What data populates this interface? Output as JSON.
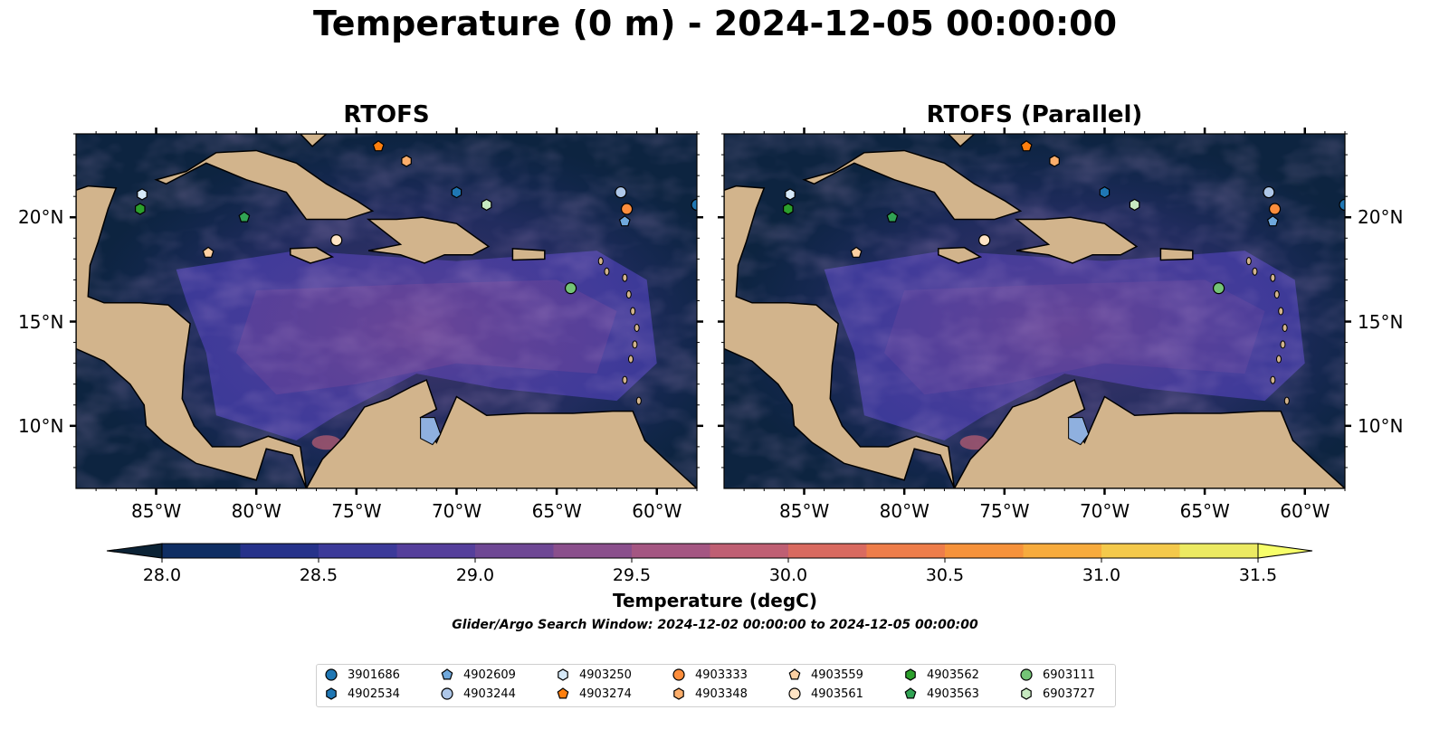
{
  "title": "Temperature (0 m) - 2024-12-05 00:00:00",
  "panels": [
    {
      "title": "RTOFS"
    },
    {
      "title": "RTOFS (Parallel)"
    }
  ],
  "lon_ticks": [
    "85°W",
    "80°W",
    "75°W",
    "70°W",
    "65°W",
    "60°W"
  ],
  "lat_ticks": [
    "20°N",
    "15°N",
    "10°N"
  ],
  "map_extent": {
    "lon": [
      -89,
      -58
    ],
    "lat": [
      7,
      24
    ]
  },
  "colorbar": {
    "title": "Temperature (degC)",
    "range": [
      28.0,
      31.5
    ],
    "extend": "both",
    "tick_labels": [
      "28.0",
      "28.5",
      "29.0",
      "29.5",
      "30.0",
      "30.5",
      "31.0",
      "31.5"
    ],
    "colors": [
      "#0b2235",
      "#0f2e63",
      "#26328a",
      "#3c3a99",
      "#553f9b",
      "#6e4794",
      "#8a4f8c",
      "#a45682",
      "#bf5f73",
      "#d96a60",
      "#ee7d4a",
      "#f6923b",
      "#f7ab3d",
      "#f4c94b",
      "#ecea62",
      "#f7ff6a"
    ],
    "land_color": "#d2b48c",
    "lake_color": "#8fb0df"
  },
  "search_window": "Glider/Argo Search Window: 2024-12-02 00:00:00 to 2024-12-05 00:00:00",
  "floats": [
    {
      "id": "3901686",
      "marker": "circle",
      "color": "#1f77b4",
      "lon": -58.0,
      "lat": 20.6
    },
    {
      "id": "4902534",
      "marker": "hexagon",
      "color": "#1f77b4",
      "lon": -70.0,
      "lat": 21.2
    },
    {
      "id": "4902609",
      "marker": "pentagon",
      "color": "#6fa8dc",
      "lon": -61.6,
      "lat": 19.8
    },
    {
      "id": "4903244",
      "marker": "circle",
      "color": "#aec7e8",
      "lon": -61.8,
      "lat": 21.2
    },
    {
      "id": "4903250",
      "marker": "hexagon",
      "color": "#d6e9f8",
      "lon": -85.7,
      "lat": 21.1
    },
    {
      "id": "4903274",
      "marker": "pentagon",
      "color": "#ff7f0e",
      "lon": -73.9,
      "lat": 23.4
    },
    {
      "id": "4903333",
      "marker": "circle",
      "color": "#fd8d3c",
      "lon": -61.5,
      "lat": 20.4
    },
    {
      "id": "4903348",
      "marker": "hexagon",
      "color": "#fdae6b",
      "lon": -72.5,
      "lat": 22.7
    },
    {
      "id": "4903559",
      "marker": "pentagon",
      "color": "#fdd0a2",
      "lon": -82.4,
      "lat": 18.3
    },
    {
      "id": "4903561",
      "marker": "circle",
      "color": "#ffe4c4",
      "lon": -76.0,
      "lat": 18.9
    },
    {
      "id": "4903562",
      "marker": "hexagon",
      "color": "#2ca02c",
      "lon": -85.8,
      "lat": 20.4
    },
    {
      "id": "4903563",
      "marker": "pentagon",
      "color": "#31a354",
      "lon": -80.6,
      "lat": 20.0
    },
    {
      "id": "6903111",
      "marker": "circle",
      "color": "#74c476",
      "lon": -64.3,
      "lat": 16.6
    },
    {
      "id": "6903727",
      "marker": "hexagon",
      "color": "#c7e9c0",
      "lon": -68.5,
      "lat": 20.6
    }
  ]
}
